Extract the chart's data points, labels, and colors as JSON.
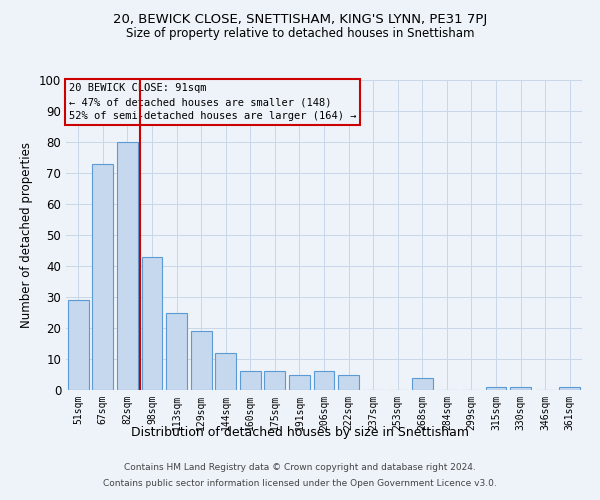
{
  "title": "20, BEWICK CLOSE, SNETTISHAM, KING'S LYNN, PE31 7PJ",
  "subtitle": "Size of property relative to detached houses in Snettisham",
  "xlabel": "Distribution of detached houses by size in Snettisham",
  "ylabel": "Number of detached properties",
  "footer_line1": "Contains HM Land Registry data © Crown copyright and database right 2024.",
  "footer_line2": "Contains public sector information licensed under the Open Government Licence v3.0.",
  "categories": [
    "51sqm",
    "67sqm",
    "82sqm",
    "98sqm",
    "113sqm",
    "129sqm",
    "144sqm",
    "160sqm",
    "175sqm",
    "191sqm",
    "206sqm",
    "222sqm",
    "237sqm",
    "253sqm",
    "268sqm",
    "284sqm",
    "299sqm",
    "315sqm",
    "330sqm",
    "346sqm",
    "361sqm"
  ],
  "values": [
    29,
    73,
    80,
    43,
    25,
    19,
    12,
    6,
    6,
    5,
    6,
    5,
    0,
    0,
    4,
    0,
    0,
    1,
    1,
    0,
    1
  ],
  "bar_color": "#c5d8ed",
  "bar_edge_color": "#5b9bd5",
  "bg_color": "#eef3f9",
  "grid_color": "#c8d8e8",
  "annotation_line1": "20 BEWICK CLOSE: 91sqm",
  "annotation_line2": "← 47% of detached houses are smaller (148)",
  "annotation_line3": "52% of semi-detached houses are larger (164) →",
  "annotation_box_color": "#cc0000",
  "vline_color": "#cc0000",
  "vline_index": 2.5,
  "ylim": [
    0,
    100
  ],
  "yticks": [
    0,
    10,
    20,
    30,
    40,
    50,
    60,
    70,
    80,
    90,
    100
  ]
}
